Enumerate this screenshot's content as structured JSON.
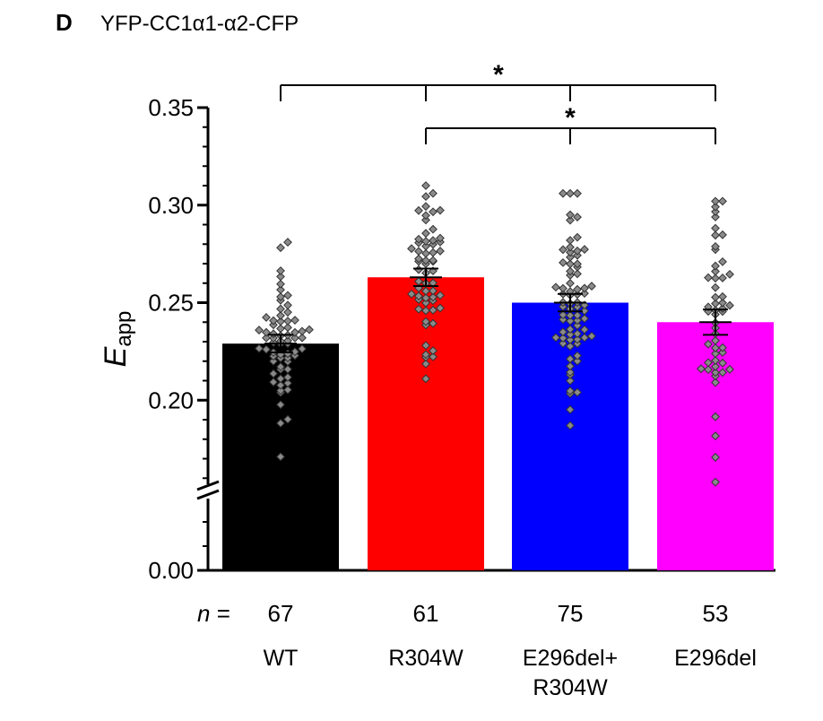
{
  "panel_label": "D",
  "chart_data": {
    "type": "bar",
    "title": "YFP-CC1α1-α2-CFP",
    "ylabel_main": "E",
    "ylabel_sub": "app",
    "ylim": [
      0,
      0.35
    ],
    "axis_break": true,
    "y_ticks": [
      0.0,
      0.2,
      0.25,
      0.3,
      0.35
    ],
    "y_tick_labels": [
      "0.00",
      "0.20",
      "0.25",
      "0.30",
      "0.35"
    ],
    "n_prefix": "n",
    "n_eq": " =",
    "categories": [
      {
        "lines": [
          "WT"
        ],
        "n": "67",
        "value": 0.229,
        "sem": 0.0045,
        "color": "#000000",
        "points": {
          "min": 0.171,
          "max": 0.281,
          "count": 67
        }
      },
      {
        "lines": [
          "R304W"
        ],
        "n": "61",
        "value": 0.263,
        "sem": 0.0045,
        "color": "#ff0000",
        "points": {
          "min": 0.211,
          "max": 0.31,
          "count": 61
        }
      },
      {
        "lines": [
          "E296del+",
          "R304W"
        ],
        "n": "75",
        "value": 0.25,
        "sem": 0.0045,
        "color": "#0000ff",
        "points": {
          "min": 0.187,
          "max": 0.306,
          "count": 75
        }
      },
      {
        "lines": [
          "E296del"
        ],
        "n": "53",
        "value": 0.24,
        "sem": 0.0065,
        "color": "#ff00ff",
        "points": {
          "min": 0.158,
          "max": 0.302,
          "count": 53
        }
      }
    ],
    "significance": [
      {
        "from": 0,
        "to": 3,
        "ticks": [
          1,
          2
        ],
        "label": "*"
      },
      {
        "from": 1,
        "to": 3,
        "ticks": [
          2
        ],
        "label": "*"
      }
    ]
  }
}
